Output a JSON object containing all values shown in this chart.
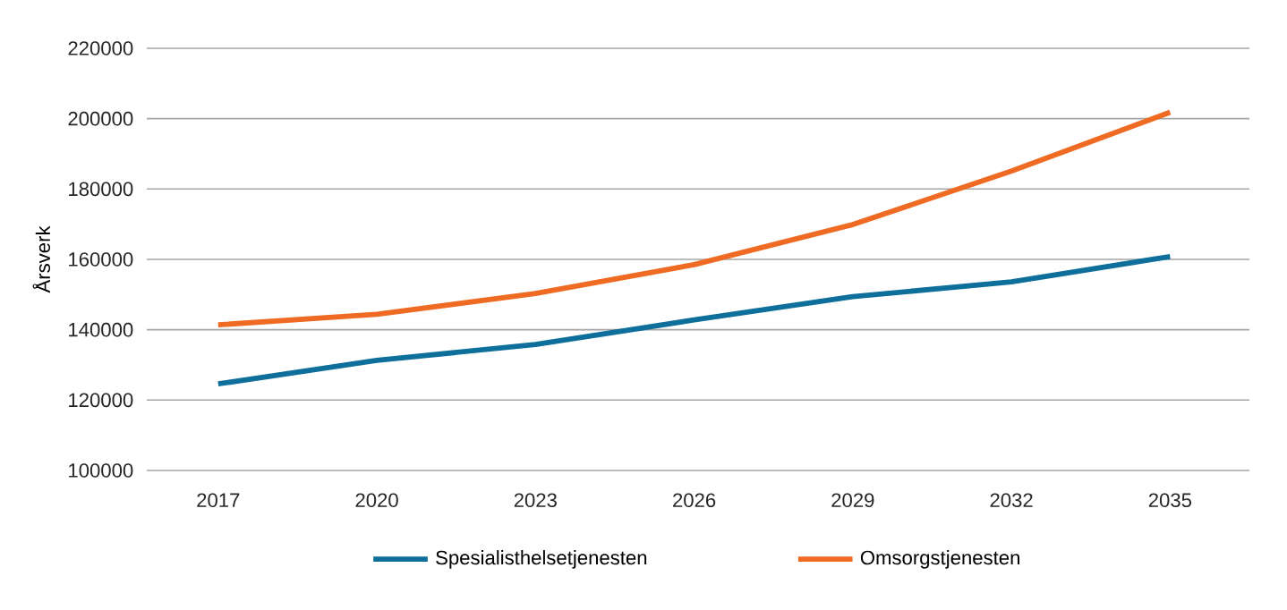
{
  "chart_data": {
    "type": "line",
    "ylabel": "Årsverk",
    "categories": [
      "2017",
      "2020",
      "2023",
      "2026",
      "2029",
      "2032",
      "2035"
    ],
    "series": [
      {
        "name": "Spesialisthelsetjenesten",
        "color": "#0e6f9a",
        "values": [
          124600,
          131300,
          135800,
          142800,
          149400,
          153600,
          160800
        ]
      },
      {
        "name": "Omsorgstjenesten",
        "color": "#ef6a22",
        "values": [
          141400,
          144400,
          150300,
          158500,
          169900,
          185100,
          201800
        ]
      }
    ],
    "ylim": [
      100000,
      220000
    ],
    "yticks": [
      100000,
      120000,
      140000,
      160000,
      180000,
      200000,
      220000
    ],
    "grid": "y",
    "legend": "bottom",
    "marker": "none",
    "line_style": "solid"
  }
}
